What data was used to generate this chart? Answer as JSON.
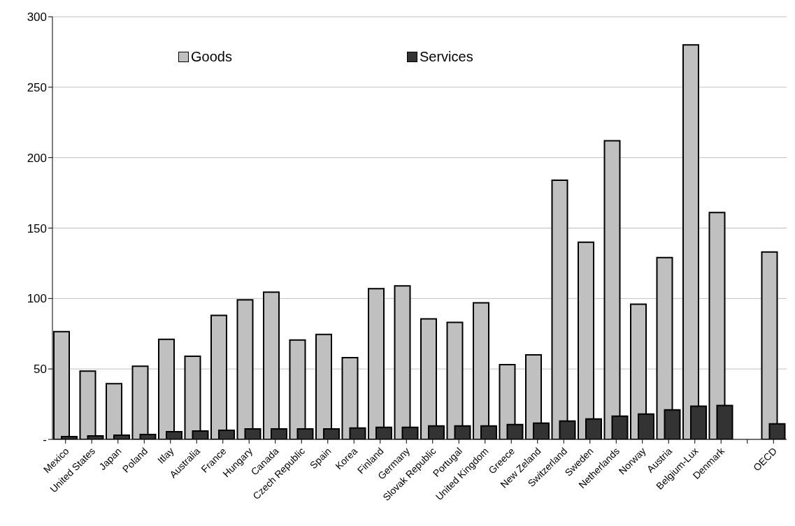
{
  "chart_data": {
    "type": "bar",
    "categories": [
      "Mexico",
      "United States",
      "Japan",
      "Poland",
      "Itlay",
      "Australia",
      "France",
      "Hungary",
      "Canada",
      "Czech Republic",
      "Spain",
      "Korea",
      "Finland",
      "Germany",
      "Slovak Republic",
      "Portugal",
      "United Kingdom",
      "Greece",
      "New Zeland",
      "Switzerland",
      "Sweden",
      "Netherlands",
      "Norway",
      "Austria",
      "Belgium-Lux",
      "Denmark",
      null,
      "OECD"
    ],
    "series": [
      {
        "name": "Goods",
        "color": "#c0c0c0",
        "values": [
          76.5,
          48.5,
          39.5,
          52,
          71,
          59,
          88,
          99,
          104.5,
          70.5,
          74.5,
          58,
          107,
          109,
          85.5,
          83,
          97,
          53,
          60,
          184,
          140,
          212,
          96,
          129,
          280,
          161,
          null,
          133
        ]
      },
      {
        "name": "Services",
        "color": "#333333",
        "values": [
          2,
          2.5,
          3,
          3.5,
          5.5,
          6,
          6.5,
          7.5,
          7.5,
          7.5,
          7.5,
          8,
          8.5,
          8.5,
          9.5,
          9.5,
          9.5,
          10.5,
          11.5,
          13,
          14.5,
          16.5,
          18,
          21,
          23.5,
          24,
          null,
          11
        ]
      }
    ],
    "ylim": [
      0,
      300
    ],
    "yticks": [
      {
        "value": 0,
        "label": "-"
      },
      50,
      100,
      150,
      200,
      250,
      300
    ],
    "grid": "y",
    "legend": "top"
  }
}
